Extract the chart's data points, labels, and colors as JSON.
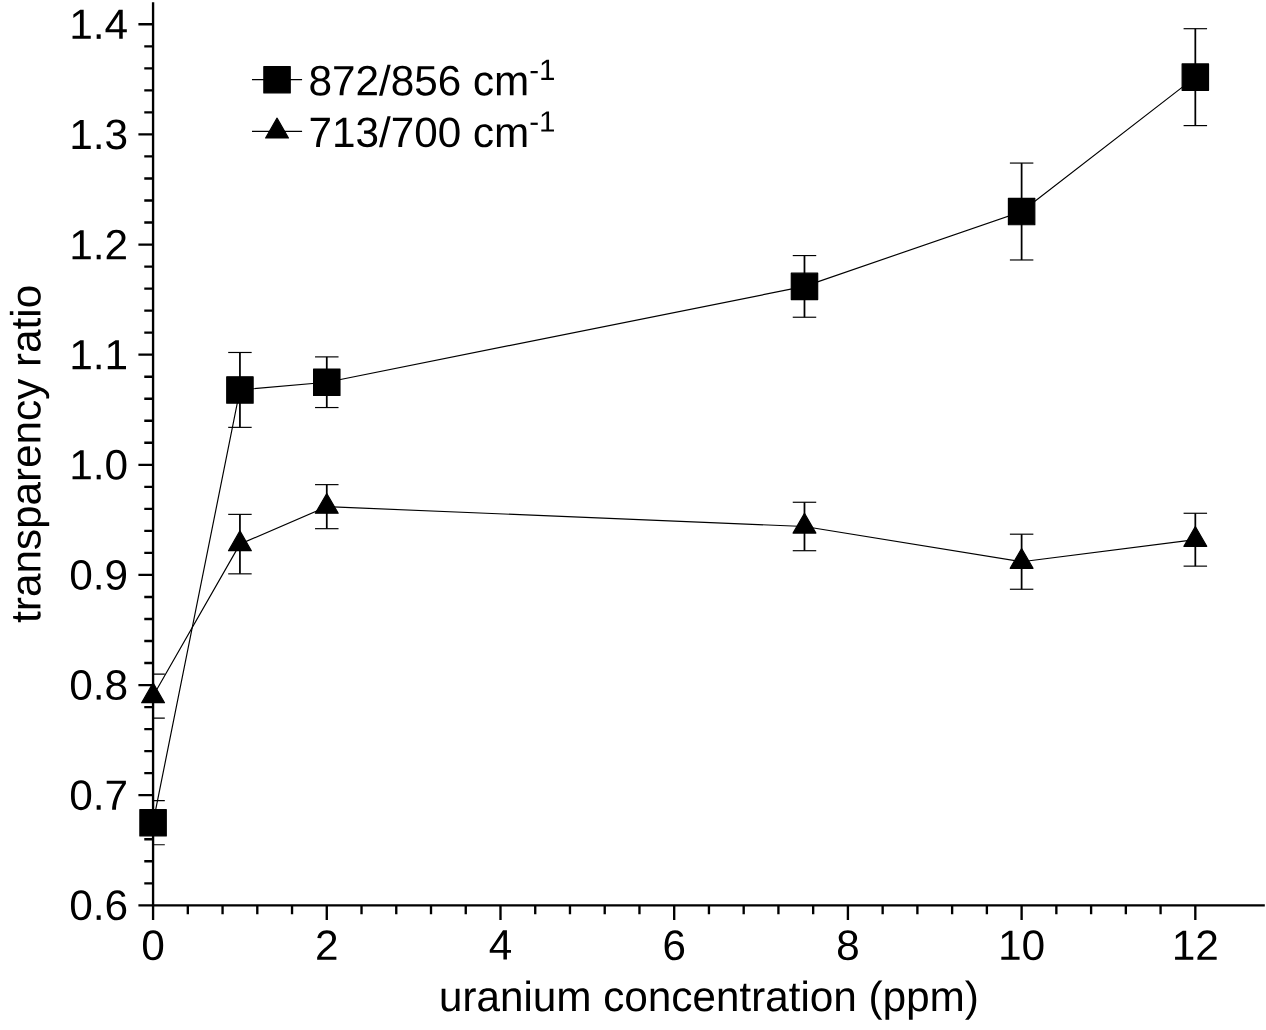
{
  "chart_data": {
    "type": "line",
    "xlabel": "uranium concentration (ppm)",
    "ylabel": "transparency ratio",
    "x": [
      0,
      1,
      2,
      7.5,
      10,
      12
    ],
    "series": [
      {
        "name": "872/856 cm$^{-1}$",
        "color": "#000000",
        "marker": "square",
        "values": [
          0.675,
          1.068,
          1.075,
          1.162,
          1.23,
          1.352
        ],
        "errors": [
          0.02,
          0.034,
          0.023,
          0.028,
          0.044,
          0.044
        ]
      },
      {
        "name": "713/700 cm$^{-1}$",
        "color": "#000000",
        "marker": "triangle",
        "values": [
          0.79,
          0.928,
          0.962,
          0.944,
          0.912,
          0.932
        ],
        "errors": [
          0.02,
          0.027,
          0.02,
          0.022,
          0.025,
          0.024
        ]
      }
    ],
    "xlim": [
      0,
      12.8
    ],
    "ylim": [
      0.6,
      1.42
    ],
    "xticks": [
      0,
      2,
      4,
      6,
      8,
      10,
      12
    ],
    "yticks": [
      {
        "value": 0.6,
        "label": "0.6"
      },
      {
        "value": 0.7,
        "label": "0.7"
      },
      {
        "value": 0.8,
        "label": "0.8"
      },
      {
        "value": 0.9,
        "label": "0.9"
      },
      {
        "value": 1.0,
        "label": "1.0"
      },
      {
        "value": 1.1,
        "label": "1.1"
      },
      {
        "value": 1.2,
        "label": "1.2"
      },
      {
        "value": 1.3,
        "label": "1.3"
      },
      {
        "value": 1.4,
        "label": "1.4"
      }
    ],
    "grid": false,
    "legend": "top left",
    "line_style": "solid"
  }
}
